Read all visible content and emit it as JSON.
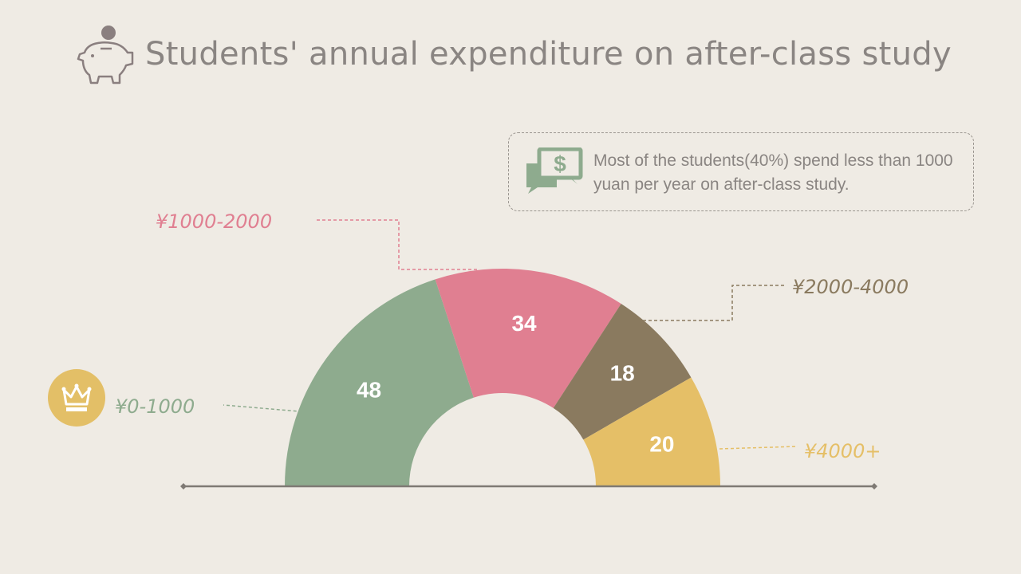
{
  "header": {
    "title": "Students' annual expenditure on after-class study",
    "icon": "piggy-bank-icon"
  },
  "callout": {
    "icon": "money-chat-icon",
    "text": "Most of the students(40%) spend less than 1000 yuan per year on after-class study."
  },
  "badge": {
    "icon": "crown-icon"
  },
  "colors": {
    "green": "#8eab8e",
    "pink": "#e07f91",
    "brown": "#8a7a5f",
    "yellow": "#e5bf67",
    "text_gray": "#8a8582",
    "baseline": "#7f7a74"
  },
  "chart_data": {
    "type": "pie",
    "shape": "half-donut",
    "title": "Students' annual expenditure on after-class study",
    "categories": [
      "¥0-1000",
      "¥1000-2000",
      "¥2000-4000",
      "¥4000+"
    ],
    "values": [
      48,
      34,
      18,
      20
    ],
    "colors": [
      "#8eab8e",
      "#e07f91",
      "#8a7a5f",
      "#e5bf67"
    ]
  }
}
